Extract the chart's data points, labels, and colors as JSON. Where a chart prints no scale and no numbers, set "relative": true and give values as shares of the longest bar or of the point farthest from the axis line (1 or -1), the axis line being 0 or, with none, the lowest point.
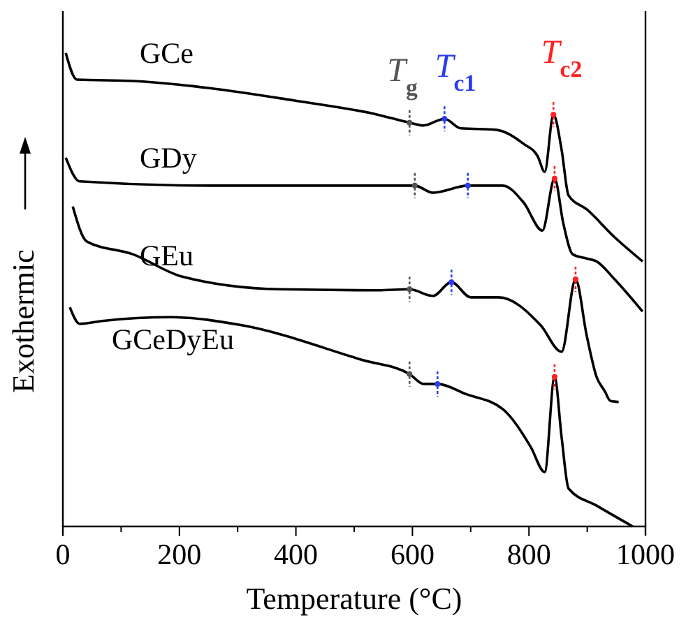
{
  "chart_data": {
    "type": "line",
    "relative": true,
    "xlabel": "Temperature (°C)",
    "ylabel": "Exothermic",
    "xlim": [
      0,
      1000
    ],
    "xticks": [
      0,
      {
        "value": 100,
        "label": null
      },
      200,
      {
        "value": 300,
        "label": null
      },
      400,
      {
        "value": 500,
        "label": null
      },
      600,
      {
        "value": 700,
        "label": null
      },
      800,
      {
        "value": 900,
        "label": null
      },
      1000
    ],
    "series": [
      {
        "name": "GCe",
        "color": "#000000",
        "x": [
          5,
          24,
          120,
          252,
          396,
          540,
          595,
          619,
          655,
          683,
          743,
          791,
          815,
          827,
          842,
          856,
          868,
          899,
          947,
          995
        ],
        "values": [
          1.0,
          0.944,
          0.941,
          0.926,
          0.9,
          0.87,
          0.853,
          0.847,
          0.861,
          0.841,
          0.838,
          0.808,
          0.782,
          0.749,
          0.87,
          0.796,
          0.699,
          0.67,
          0.611,
          0.56
        ]
      },
      {
        "name": "GDy",
        "color": "#000000",
        "x": [
          5,
          29,
          252,
          516,
          604,
          635,
          695,
          755,
          791,
          823,
          844,
          859,
          875,
          899,
          916,
          947,
          995
        ],
        "values": [
          0.779,
          0.729,
          0.72,
          0.72,
          0.72,
          0.705,
          0.72,
          0.72,
          0.684,
          0.625,
          0.735,
          0.64,
          0.575,
          0.566,
          0.56,
          0.522,
          0.454
        ]
      },
      {
        "name": "GEu",
        "color": "#000000",
        "x": [
          17,
          41,
          120,
          204,
          372,
          540,
          595,
          635,
          667,
          700,
          748,
          820,
          856,
          880,
          899,
          916,
          930,
          940,
          954
        ],
        "values": [
          0.676,
          0.602,
          0.575,
          0.528,
          0.501,
          0.499,
          0.501,
          0.487,
          0.516,
          0.484,
          0.484,
          0.425,
          0.369,
          0.522,
          0.404,
          0.316,
          0.286,
          0.265,
          0.263
        ]
      },
      {
        "name": "GCeDyEu",
        "color": "#000000",
        "x": [
          12,
          29,
          67,
          187,
          307,
          516,
          595,
          619,
          643,
          691,
          755,
          803,
          827,
          844,
          856,
          868,
          916,
          978
        ],
        "values": [
          0.463,
          0.428,
          0.434,
          0.442,
          0.425,
          0.351,
          0.322,
          0.301,
          0.301,
          0.28,
          0.248,
          0.168,
          0.115,
          0.316,
          0.189,
          0.08,
          0.044,
          0
        ]
      },
      {
        "type": "scatter",
        "marker": "circle",
        "color": "#555555",
        "x": [
          595,
          604,
          595,
          595
        ],
        "values": [
          0.853,
          0.72,
          0.501,
          0.322
        ]
      },
      {
        "type": "scatter",
        "marker": "circle",
        "color": "#2a3cf0",
        "x": [
          655,
          695,
          667,
          643
        ],
        "values": [
          0.861,
          0.72,
          0.516,
          0.301
        ]
      },
      {
        "type": "scatter",
        "marker": "circle",
        "color": "#ff2020",
        "x": [
          842,
          844,
          880,
          844
        ],
        "values": [
          0.87,
          0.735,
          0.522,
          0.316
        ]
      }
    ],
    "annotations": [
      "T$_{g}$",
      "T$_{c1}$",
      "T$_{c2}$"
    ],
    "line_style": "solid"
  }
}
